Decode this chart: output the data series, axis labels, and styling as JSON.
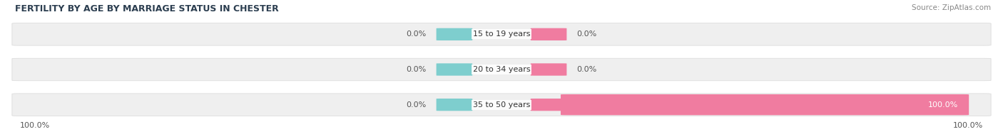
{
  "title": "FERTILITY BY AGE BY MARRIAGE STATUS IN CHESTER",
  "source": "Source: ZipAtlas.com",
  "categories": [
    "15 to 19 years",
    "20 to 34 years",
    "35 to 50 years"
  ],
  "married_values": [
    0.0,
    0.0,
    0.0
  ],
  "unmarried_values": [
    0.0,
    0.0,
    100.0
  ],
  "married_color": "#7ecece",
  "unmarried_color": "#f07ca0",
  "bar_bg_color": "#efefef",
  "bar_height": 0.62,
  "bar_gap": 0.08,
  "label_left_100": "100.0%",
  "label_right_100": "100.0%",
  "figsize": [
    14.06,
    1.96
  ],
  "dpi": 100,
  "title_color": "#2c3e50",
  "source_color": "#888888",
  "value_color": "#555555"
}
